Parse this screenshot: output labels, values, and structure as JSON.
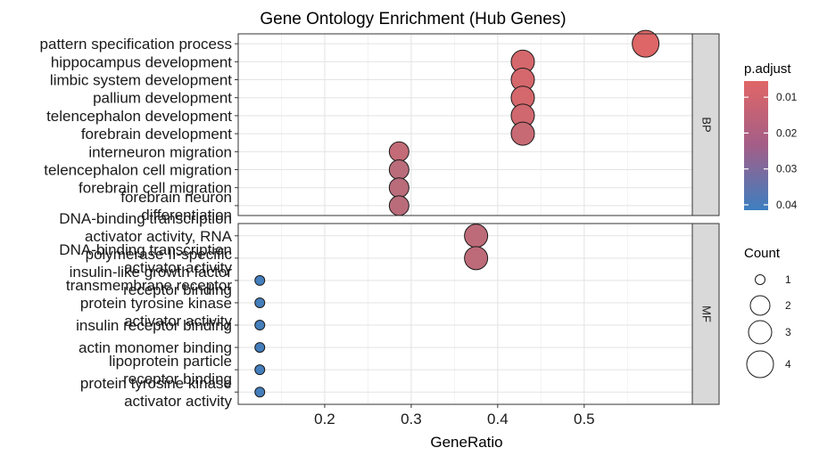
{
  "chart_data": {
    "type": "scatter",
    "title": "Gene Ontology Enrichment (Hub Genes)",
    "xlabel": "GeneRatio",
    "ylabel": "",
    "xlim": [
      0.1,
      0.625
    ],
    "xticks": [
      0.2,
      0.3,
      0.4,
      0.5
    ],
    "xtick_labels": [
      "0.2",
      "0.3",
      "0.4",
      "0.5"
    ],
    "grid": true,
    "panels": [
      {
        "name": "BP",
        "terms": [
          {
            "label": [
              "pattern specification process"
            ],
            "x": 0.571,
            "count": 4,
            "padj": 0.006
          },
          {
            "label": [
              "hippocampus development"
            ],
            "x": 0.429,
            "count": 3,
            "padj": 0.008
          },
          {
            "label": [
              "limbic system development"
            ],
            "x": 0.429,
            "count": 3,
            "padj": 0.008
          },
          {
            "label": [
              "pallium development"
            ],
            "x": 0.429,
            "count": 3,
            "padj": 0.008
          },
          {
            "label": [
              "telencephalon development"
            ],
            "x": 0.429,
            "count": 3,
            "padj": 0.009
          },
          {
            "label": [
              "forebrain development"
            ],
            "x": 0.429,
            "count": 3,
            "padj": 0.011
          },
          {
            "label": [
              "interneuron migration"
            ],
            "x": 0.286,
            "count": 2,
            "padj": 0.012
          },
          {
            "label": [
              "telencephalon cell migration"
            ],
            "x": 0.286,
            "count": 2,
            "padj": 0.014
          },
          {
            "label": [
              "forebrain cell migration"
            ],
            "x": 0.286,
            "count": 2,
            "padj": 0.014
          },
          {
            "label": [
              "forebrain neuron",
              "differentiation"
            ],
            "x": 0.286,
            "count": 2,
            "padj": 0.014
          }
        ]
      },
      {
        "name": "MF",
        "terms": [
          {
            "label": [
              "DNA-binding transcription",
              "activator activity, RNA",
              "polymerase II-specific"
            ],
            "x": 0.375,
            "count": 3,
            "padj": 0.013
          },
          {
            "label": [
              "DNA-binding transcription",
              "activator activity"
            ],
            "x": 0.375,
            "count": 3,
            "padj": 0.013
          },
          {
            "label": [
              "insulin-like growth factor",
              "receptor binding"
            ],
            "x": 0.125,
            "count": 1,
            "padj": 0.04
          },
          {
            "label": [
              "transmembrane receptor",
              "protein tyrosine kinase",
              "activator activity"
            ],
            "x": 0.125,
            "count": 1,
            "padj": 0.04
          },
          {
            "label": [
              "insulin receptor binding"
            ],
            "x": 0.125,
            "count": 1,
            "padj": 0.04
          },
          {
            "label": [
              "actin monomer binding"
            ],
            "x": 0.125,
            "count": 1,
            "padj": 0.04
          },
          {
            "label": [
              "lipoprotein particle",
              "receptor binding"
            ],
            "x": 0.125,
            "count": 1,
            "padj": 0.04
          },
          {
            "label": [
              "protein tyrosine kinase",
              "activator activity"
            ],
            "x": 0.125,
            "count": 1,
            "padj": 0.04
          }
        ]
      }
    ],
    "legend": {
      "placement": "right",
      "color": {
        "title": "p.adjust",
        "range": [
          0.0055,
          0.0415
        ],
        "ticks": [
          0.01,
          0.02,
          0.03,
          0.04
        ],
        "tick_labels": [
          "0.01",
          "0.02",
          "0.03",
          "0.04"
        ],
        "low_color": "#e06666",
        "high_color": "#3d7fc0"
      },
      "size": {
        "title": "Count",
        "values": [
          1,
          2,
          3,
          4
        ],
        "labels": [
          "1",
          "2",
          "3",
          "4"
        ]
      }
    }
  }
}
